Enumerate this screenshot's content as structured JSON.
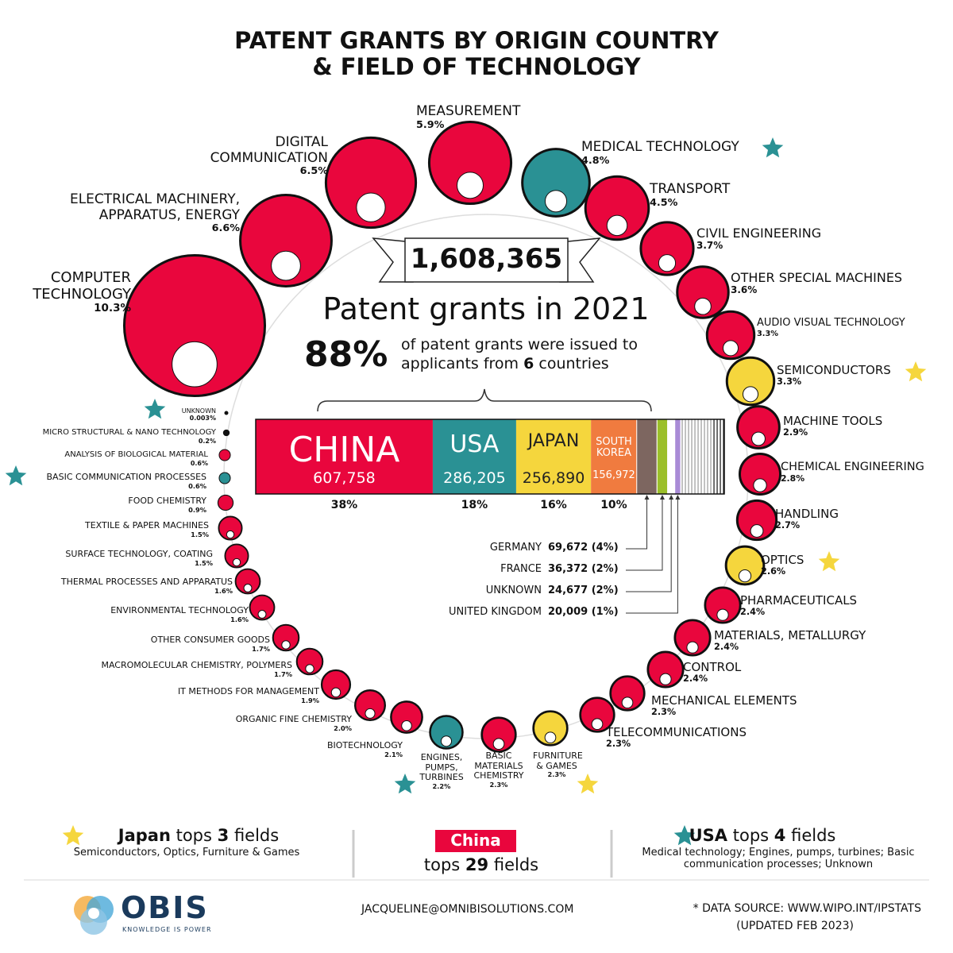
{
  "header": {
    "title": [
      "PATENT GRANTS BY ORIGIN COUNTRY",
      "& FIELD OF TECHNOLOGY"
    ]
  },
  "summary": {
    "total": 1608365,
    "total_label": "1,608,365",
    "subtitle": "Patent grants in 2021",
    "share_label": "88%",
    "share_text_1": "of patent grants were issued to",
    "share_text_2": "applicants from",
    "country_count": "6",
    "share_text_3": "countries"
  },
  "countries": {
    "top": [
      {
        "name": "CHINA",
        "count": 607758,
        "count_label": "607,758",
        "pct": "38%",
        "color": "#e9063d"
      },
      {
        "name": "USA",
        "count": 286205,
        "count_label": "286,205",
        "pct": "18%",
        "color": "#2a9194"
      },
      {
        "name": "JAPAN",
        "count": 256890,
        "count_label": "256,890",
        "pct": "16%",
        "color": "#f5d63d"
      },
      {
        "name": "SOUTH KOREA",
        "count": 156972,
        "count_label": "156,972",
        "pct": "10%",
        "color": "#f07b3f"
      }
    ],
    "others": [
      {
        "name": "GERMANY",
        "count": 69672,
        "count_label": "69,672 (4%)",
        "color": "#7d6660"
      },
      {
        "name": "FRANCE",
        "count": 36372,
        "count_label": "36,372 (2%)",
        "color": "#9bbf2a"
      },
      {
        "name": "UNKNOWN",
        "count": 24677,
        "count_label": "24,677 (2%)",
        "color": "#ffffff"
      },
      {
        "name": "UNITED KINGDOM",
        "count": 20009,
        "count_label": "20,009 (1%)",
        "color": "#a98bd6"
      }
    ]
  },
  "fields": [
    {
      "name": "COMPUTER TECHNOLOGY",
      "value": 10.3,
      "label": "10.3%",
      "color": "#e9063d"
    },
    {
      "name": "ELECTRICAL MACHINERY, APPARATUS, ENERGY",
      "value": 6.6,
      "label": "6.6%",
      "color": "#e9063d"
    },
    {
      "name": "DIGITAL COMMUNICATION",
      "value": 6.5,
      "label": "6.5%",
      "color": "#e9063d"
    },
    {
      "name": "MEASUREMENT",
      "value": 5.9,
      "label": "5.9%",
      "color": "#e9063d"
    },
    {
      "name": "MEDICAL TECHNOLOGY",
      "value": 4.8,
      "label": "4.8%",
      "color": "#2a9194",
      "star": "#2a9194"
    },
    {
      "name": "TRANSPORT",
      "value": 4.5,
      "label": "4.5%",
      "color": "#e9063d"
    },
    {
      "name": "CIVIL ENGINEERING",
      "value": 3.7,
      "label": "3.7%",
      "color": "#e9063d"
    },
    {
      "name": "OTHER SPECIAL MACHINES",
      "value": 3.6,
      "label": "3.6%",
      "color": "#e9063d"
    },
    {
      "name": "AUDIO VISUAL TECHNOLOGY",
      "value": 3.3,
      "label": "3.3%",
      "color": "#e9063d"
    },
    {
      "name": "SEMICONDUCTORS",
      "value": 3.3,
      "label": "3.3%",
      "color": "#f5d63d",
      "star": "#f5d63d"
    },
    {
      "name": "MACHINE TOOLS",
      "value": 2.9,
      "label": "2.9%",
      "color": "#e9063d"
    },
    {
      "name": "CHEMICAL ENGINEERING",
      "value": 2.8,
      "label": "2.8%",
      "color": "#e9063d"
    },
    {
      "name": "HANDLING",
      "value": 2.7,
      "label": "2.7%",
      "color": "#e9063d"
    },
    {
      "name": "OPTICS",
      "value": 2.6,
      "label": "2.6%",
      "color": "#f5d63d",
      "star": "#f5d63d"
    },
    {
      "name": "PHARMACEUTICALS",
      "value": 2.4,
      "label": "2.4%",
      "color": "#e9063d"
    },
    {
      "name": "MATERIALS, METALLURGY",
      "value": 2.4,
      "label": "2.4%",
      "color": "#e9063d"
    },
    {
      "name": "CONTROL",
      "value": 2.4,
      "label": "2.4%",
      "color": "#e9063d"
    },
    {
      "name": "MECHANICAL ELEMENTS",
      "value": 2.3,
      "label": "2.3%",
      "color": "#e9063d"
    },
    {
      "name": "TELECOMMUNICATIONS",
      "value": 2.3,
      "label": "2.3%",
      "color": "#e9063d"
    },
    {
      "name": "FURNITURE & GAMES",
      "value": 2.3,
      "label": "2.3%",
      "color": "#f5d63d",
      "star": "#f5d63d"
    },
    {
      "name": "BASIC MATERIALS CHEMISTRY",
      "value": 2.3,
      "label": "2.3%",
      "color": "#e9063d"
    },
    {
      "name": "ENGINES, PUMPS, TURBINES",
      "value": 2.2,
      "label": "2.2%",
      "color": "#2a9194",
      "star": "#2a9194"
    },
    {
      "name": "BIOTECHNOLOGY",
      "value": 2.1,
      "label": "2.1%",
      "color": "#e9063d"
    },
    {
      "name": "ORGANIC FINE CHEMISTRY",
      "value": 2.0,
      "label": "2.0%",
      "color": "#e9063d"
    },
    {
      "name": "IT METHODS FOR MANAGEMENT",
      "value": 1.9,
      "label": "1.9%",
      "color": "#e9063d"
    },
    {
      "name": "MACROMOLECULAR CHEMISTRY, POLYMERS",
      "value": 1.7,
      "label": "1.7%",
      "color": "#e9063d"
    },
    {
      "name": "OTHER CONSUMER GOODS",
      "value": 1.7,
      "label": "1.7%",
      "color": "#e9063d"
    },
    {
      "name": "ENVIRONMENTAL TECHNOLOGY",
      "value": 1.6,
      "label": "1.6%",
      "color": "#e9063d"
    },
    {
      "name": "THERMAL PROCESSES AND APPARATUS",
      "value": 1.6,
      "label": "1.6%",
      "color": "#e9063d"
    },
    {
      "name": "SURFACE TECHNOLOGY, COATING",
      "value": 1.5,
      "label": "1.5%",
      "color": "#e9063d"
    },
    {
      "name": "TEXTILE & PAPER MACHINES",
      "value": 1.5,
      "label": "1.5%",
      "color": "#e9063d"
    },
    {
      "name": "FOOD CHEMISTRY",
      "value": 0.9,
      "label": "0.9%",
      "color": "#e9063d"
    },
    {
      "name": "BASIC COMMUNICATION PROCESSES",
      "value": 0.6,
      "label": "0.6%",
      "color": "#2a9194",
      "star": "#2a9194"
    },
    {
      "name": "ANALYSIS OF BIOLOGICAL MATERIAL",
      "value": 0.6,
      "label": "0.6%",
      "color": "#e9063d"
    },
    {
      "name": "MICRO STRUCTURAL & NANO TECHNOLOGY",
      "value": 0.2,
      "label": "0.2%",
      "color": "#111111"
    },
    {
      "name": "UNKNOWN",
      "value": 0.003,
      "label": "0.003%",
      "color": "#111111",
      "star": "#2a9194"
    }
  ],
  "notes": [
    {
      "lead": "Japan",
      "verb": "tops",
      "count": "3",
      "tail": "fields",
      "detail": "Semiconductors, Optics, Furniture & Games"
    },
    {
      "lead": "China",
      "verb": "tops",
      "count": "29",
      "tail": "fields"
    },
    {
      "lead": "USA",
      "verb": "tops",
      "count": "4",
      "tail": "fields",
      "detail": "Medical technology; Engines, pumps, turbines; Basic communication processes; Unknown"
    }
  ],
  "footer": {
    "brand": "OBIS",
    "tagline": "KNOWLEDGE IS POWER",
    "email": "JACQUELINE@OMNIBISOLUTIONS.COM",
    "source": "* DATA SOURCE:  WWW.WIPO.INT/IPSTATS",
    "updated": "(UPDATED FEB 2023)"
  }
}
